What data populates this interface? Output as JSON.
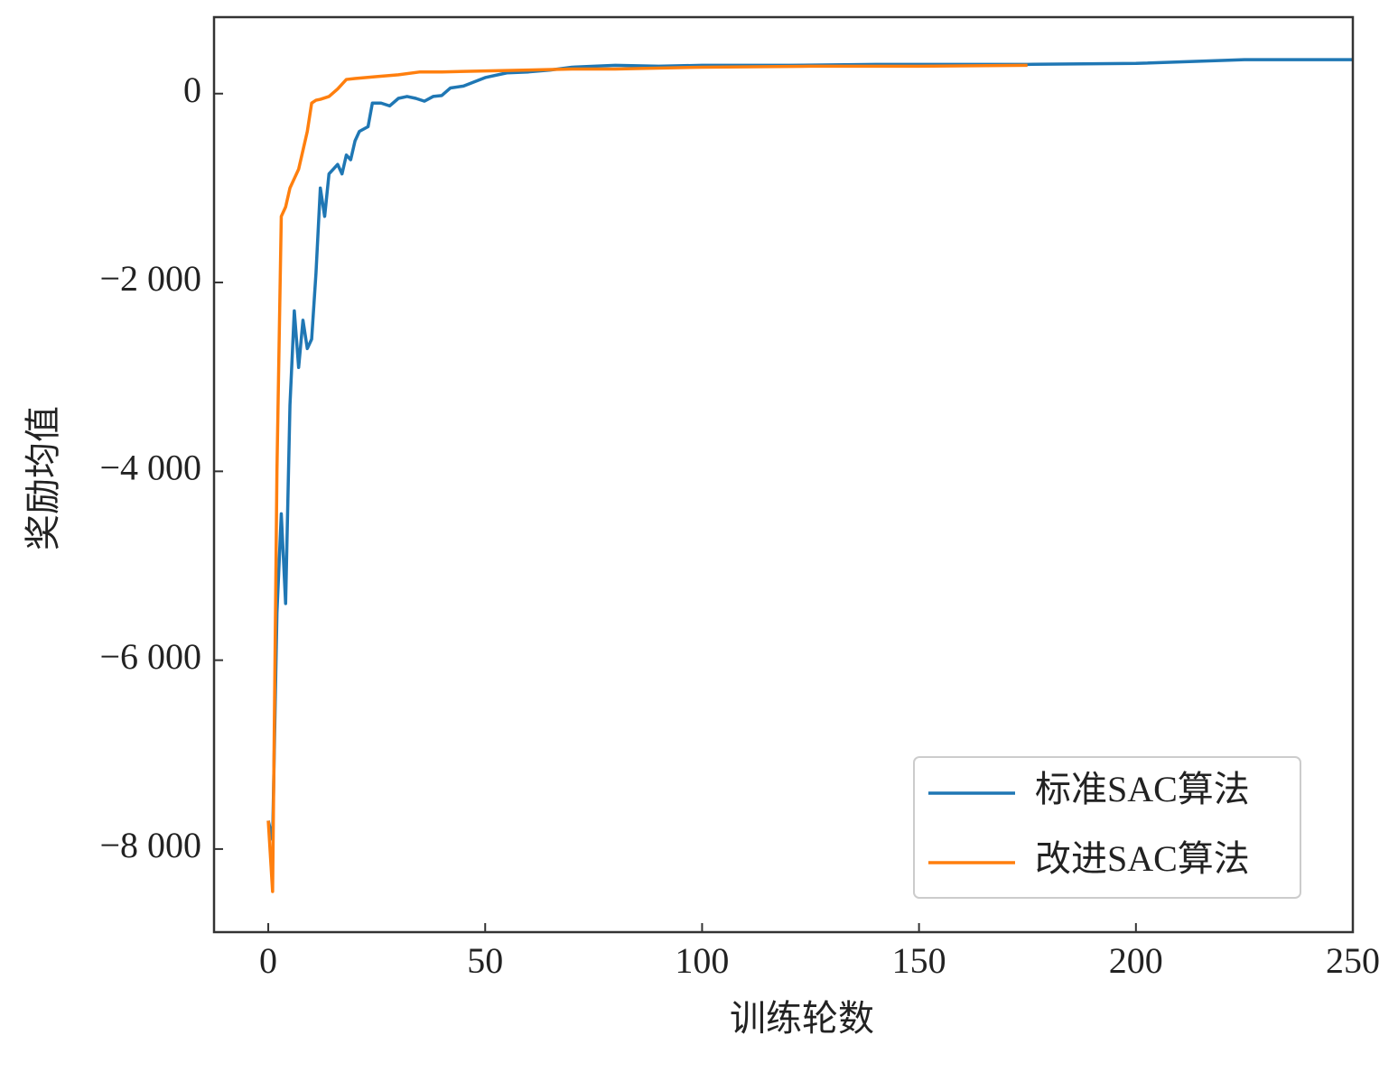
{
  "chart_data": {
    "type": "line",
    "xlabel": "训练轮数",
    "ylabel": "奖励均值",
    "xlim": [
      -12.5,
      250
    ],
    "xticks": [
      0,
      50,
      100,
      150,
      200,
      250
    ],
    "ylim": [
      -8880,
      810
    ],
    "yticks": [
      {
        "value": -8000,
        "label": "−8 000"
      },
      {
        "value": -6000,
        "label": "−6 000"
      },
      {
        "value": -4000,
        "label": "−4 000"
      },
      {
        "value": -2000,
        "label": "−2 000"
      },
      0
    ],
    "legend": "lower right",
    "series": [
      {
        "name": "标准SAC算法",
        "color": "#1f77b4",
        "x": [
          0,
          1,
          2,
          3,
          4,
          5,
          6,
          7,
          8,
          9,
          10,
          11,
          12,
          13,
          14,
          15,
          16,
          17,
          18,
          19,
          20,
          21,
          23,
          24,
          26,
          28,
          30,
          32,
          34,
          36,
          38,
          40,
          42,
          45,
          50,
          55,
          60,
          65,
          70,
          80,
          90,
          100,
          120,
          140,
          160,
          175,
          200,
          225,
          250
        ],
        "values": [
          -7700,
          -7900,
          -5500,
          -4450,
          -5400,
          -3300,
          -2300,
          -2900,
          -2400,
          -2700,
          -2600,
          -1900,
          -1000,
          -1300,
          -850,
          -800,
          -750,
          -850,
          -650,
          -700,
          -500,
          -400,
          -350,
          -100,
          -100,
          -130,
          -50,
          -30,
          -50,
          -80,
          -30,
          -20,
          60,
          80,
          170,
          220,
          230,
          250,
          280,
          300,
          290,
          300,
          300,
          310,
          310,
          310,
          320,
          360,
          360
        ]
      },
      {
        "name": "改进SAC算法",
        "color": "#ff7f0e",
        "x": [
          0,
          1,
          2,
          3,
          4,
          5,
          6,
          7,
          8,
          9,
          10,
          11,
          12,
          14,
          16,
          18,
          20,
          25,
          30,
          35,
          40,
          50,
          60,
          70,
          80,
          100,
          125,
          150,
          175
        ],
        "values": [
          -7700,
          -8450,
          -4000,
          -1300,
          -1200,
          -1000,
          -900,
          -800,
          -600,
          -400,
          -100,
          -70,
          -60,
          -30,
          50,
          150,
          160,
          180,
          200,
          230,
          230,
          240,
          250,
          260,
          260,
          280,
          290,
          290,
          300
        ]
      }
    ]
  }
}
